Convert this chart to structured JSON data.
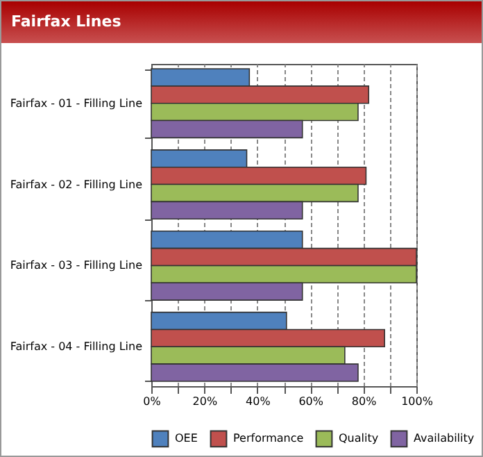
{
  "chart_data": {
    "type": "bar",
    "orientation": "horizontal",
    "title": "Fairfax Lines",
    "categories": [
      "Fairfax - 01 - Filling Line",
      "Fairfax - 02 - Filling Line",
      "Fairfax - 03 - Filling Line",
      "Fairfax - 04 - Filling Line"
    ],
    "series": [
      {
        "name": "OEE",
        "color": "#4f81bd",
        "values": [
          37,
          36,
          57,
          51
        ]
      },
      {
        "name": "Performance",
        "color": "#c0504d",
        "values": [
          82,
          81,
          100,
          88
        ]
      },
      {
        "name": "Quality",
        "color": "#9bbb59",
        "values": [
          78,
          78,
          100,
          73
        ]
      },
      {
        "name": "Availability",
        "color": "#8064a2",
        "values": [
          57,
          57,
          57,
          78
        ]
      }
    ],
    "xlim": [
      0,
      100
    ],
    "xticks": [
      {
        "value": 0,
        "label": "0%"
      },
      {
        "value": 10,
        "label": null
      },
      {
        "value": 20,
        "label": "20%"
      },
      {
        "value": 30,
        "label": null
      },
      {
        "value": 40,
        "label": "40%"
      },
      {
        "value": 50,
        "label": null
      },
      {
        "value": 60,
        "label": "60%"
      },
      {
        "value": 70,
        "label": null
      },
      {
        "value": 80,
        "label": "80%"
      },
      {
        "value": 90,
        "label": null
      },
      {
        "value": 100,
        "label": "100%"
      }
    ],
    "grid": "x",
    "legend": "bottom"
  }
}
